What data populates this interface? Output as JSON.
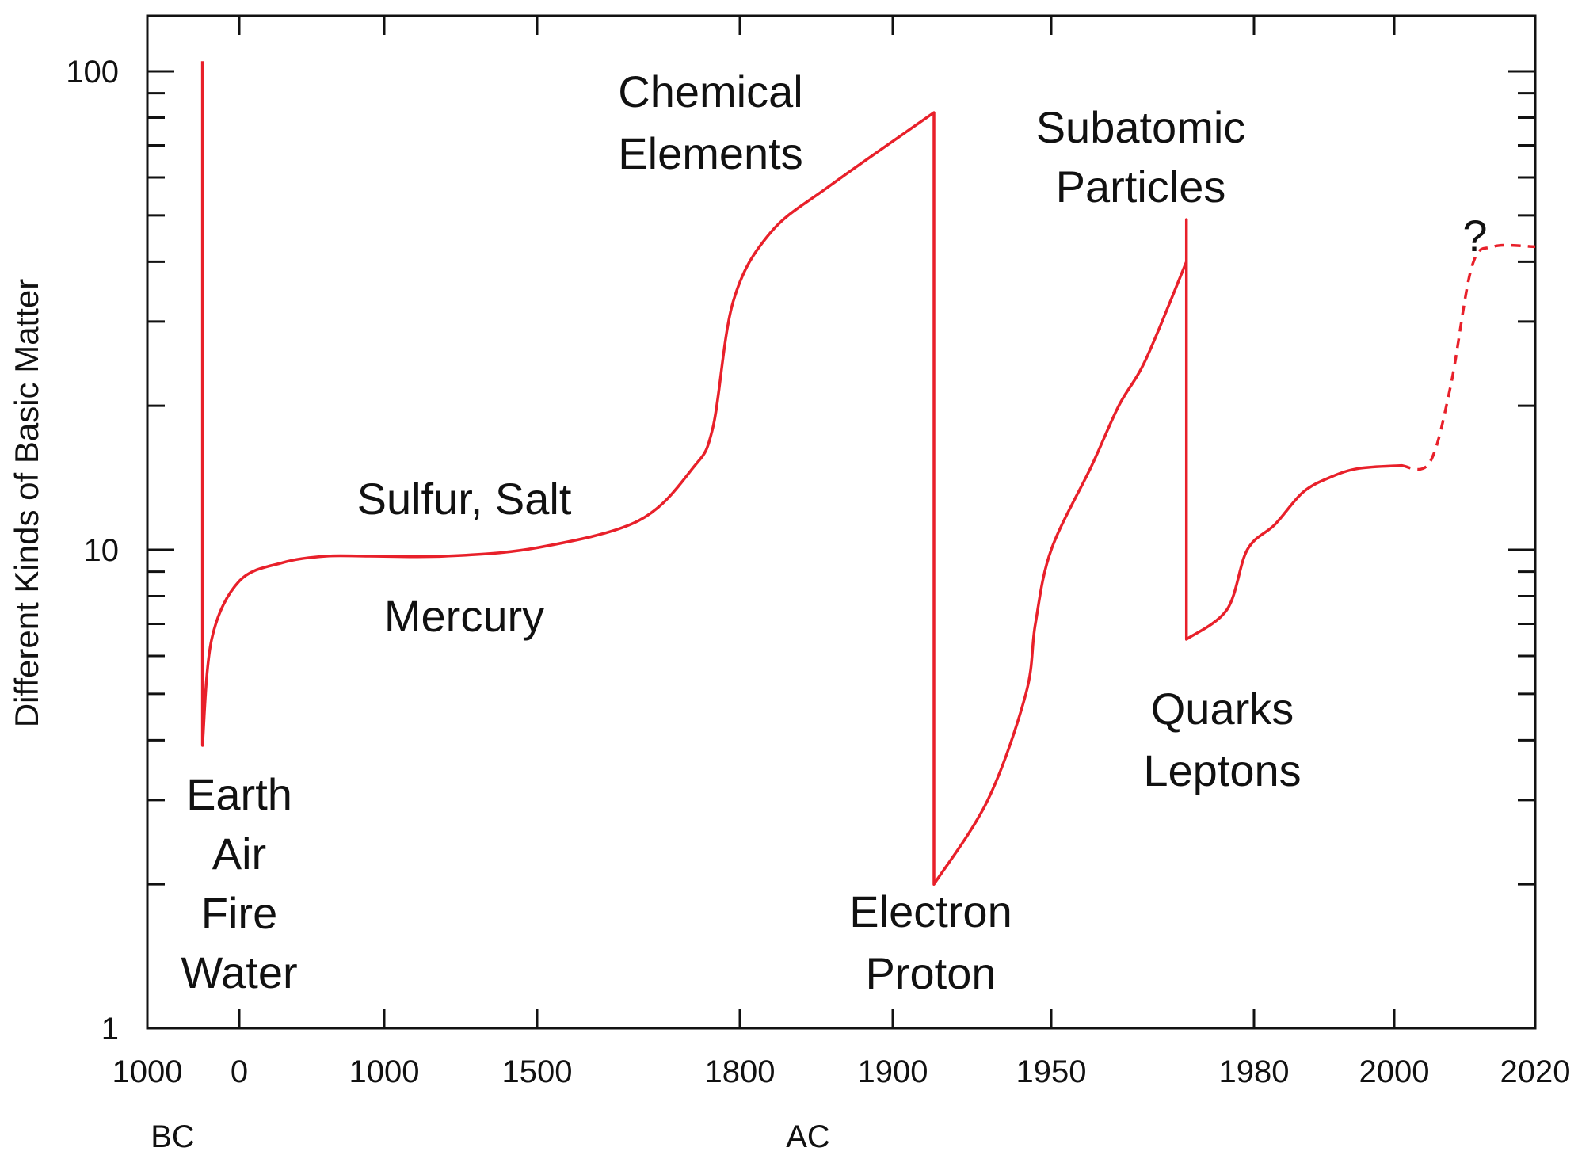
{
  "chart_data": {
    "type": "line",
    "title": "",
    "xlabel": "",
    "ylabel": "Different Kinds of Basic Matter",
    "yscale": "log",
    "ylim": [
      1,
      100
    ],
    "yticks": [
      {
        "value": 1,
        "label": "1"
      },
      {
        "value": 10,
        "label": "10"
      },
      {
        "value": 100,
        "label": "100"
      }
    ],
    "xticks": [
      {
        "value": -1000,
        "label": "1000"
      },
      {
        "value": 0,
        "label": "0"
      },
      {
        "value": 1000,
        "label": "1000"
      },
      {
        "value": 1500,
        "label": "1500"
      },
      {
        "value": 1800,
        "label": "1800"
      },
      {
        "value": 1900,
        "label": "1900"
      },
      {
        "value": 1950,
        "label": "1950"
      },
      {
        "value": 1980,
        "label": "1980"
      },
      {
        "value": 2000,
        "label": "2000"
      },
      {
        "value": 2020,
        "label": "2020"
      }
    ],
    "x_era_labels": [
      {
        "label": "BC",
        "at": -1000
      },
      {
        "label": "AC",
        "at": 1800
      }
    ],
    "line_color": "#e8202a",
    "series": [
      {
        "style": "solid",
        "points": [
          [
            -400,
            105
          ],
          [
            -400,
            3.9
          ],
          [
            -300,
            6.5
          ],
          [
            0,
            8.6
          ],
          [
            300,
            9.4
          ],
          [
            600,
            9.7
          ],
          [
            900,
            9.7
          ],
          [
            1200,
            9.7
          ],
          [
            1500,
            10.1
          ],
          [
            1650,
            11.5
          ],
          [
            1730,
            14.8
          ],
          [
            1760,
            18
          ],
          [
            1790,
            33
          ],
          [
            1820,
            46
          ],
          [
            1860,
            58
          ],
          [
            1913,
            82
          ],
          [
            1913,
            2.0
          ],
          [
            1930,
            3.0
          ],
          [
            1942,
            5.0
          ],
          [
            1945,
            7.0
          ],
          [
            1950,
            10.0
          ],
          [
            1956,
            15.0
          ],
          [
            1960,
            20.0
          ],
          [
            1964,
            25.0
          ],
          [
            1970,
            40.0
          ],
          [
            1970,
            49.0
          ],
          [
            1970,
            6.5
          ],
          [
            1976,
            7.5
          ],
          [
            1979,
            10.0
          ],
          [
            1983,
            11.3
          ],
          [
            1987,
            13.2
          ],
          [
            1991,
            14.2
          ],
          [
            1995,
            14.8
          ],
          [
            2001,
            15.0
          ]
        ]
      },
      {
        "style": "dashed",
        "points": [
          [
            2001,
            15.0
          ],
          [
            2005,
            15.2
          ],
          [
            2008,
            22.0
          ],
          [
            2011,
            39.0
          ],
          [
            2014,
            43.0
          ],
          [
            2020,
            43.0
          ]
        ]
      }
    ],
    "annotations": [
      {
        "lines": [
          "Earth",
          "Air",
          "Fire",
          "Water"
        ]
      },
      {
        "lines": [
          "Sulfur, Salt"
        ]
      },
      {
        "lines": [
          "Mercury"
        ]
      },
      {
        "lines": [
          "Chemical",
          "Elements"
        ]
      },
      {
        "lines": [
          "Electron",
          "Proton"
        ]
      },
      {
        "lines": [
          "Subatomic",
          "Particles"
        ]
      },
      {
        "lines": [
          "Quarks",
          "Leptons"
        ]
      },
      {
        "lines": [
          "?"
        ]
      }
    ],
    "grid": false,
    "legend": "none"
  }
}
